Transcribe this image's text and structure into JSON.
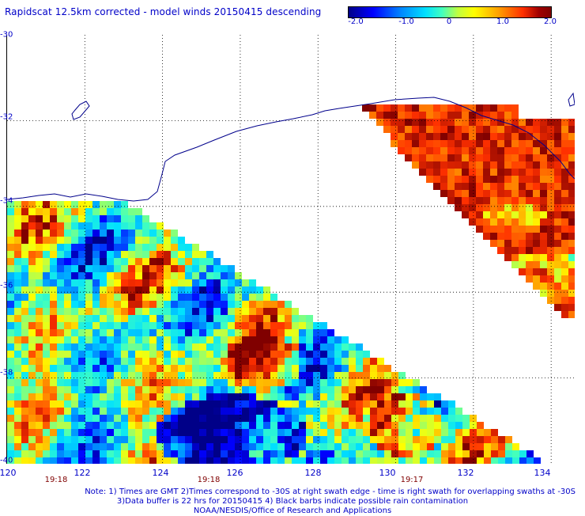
{
  "title": "Rapidscat 12.5km corrected - model winds 20150415 descending",
  "colorbar": {
    "ticks": [
      "-2.0",
      "-1.0",
      "0",
      "1.0",
      "2.0"
    ],
    "tick_values": [
      -2.0,
      -1.0,
      0.0,
      1.0,
      2.0
    ],
    "range": [
      -2.0,
      2.0
    ],
    "colors": [
      "#000088",
      "#0000ff",
      "#00e0ff",
      "#c0ff40",
      "#ffff00",
      "#ff3000",
      "#800000"
    ]
  },
  "map": {
    "lon_labels": [
      "120",
      "122",
      "124",
      "126",
      "128",
      "130",
      "132",
      "134"
    ],
    "lat_labels": [
      "-30",
      "-32",
      "-34",
      "-36",
      "-38",
      "-40"
    ],
    "lon_range": [
      120,
      135
    ],
    "lat_range": [
      -30,
      -40
    ],
    "grid": true,
    "coastline_color": "#00008b",
    "time_labels": [
      "19:18",
      "19:18",
      "19:17"
    ]
  },
  "notes": {
    "line1": "Note: 1) Times are GMT 2)Times correspond to -30S at right swath edge - time is right swath for overlapping swaths at -30S",
    "line2": "3)Data buffer is 22 hrs for 20150415 4) Black barbs indicate possible rain contamination",
    "line3": "NOAA/NESDIS/Office of Research and Applications"
  }
}
